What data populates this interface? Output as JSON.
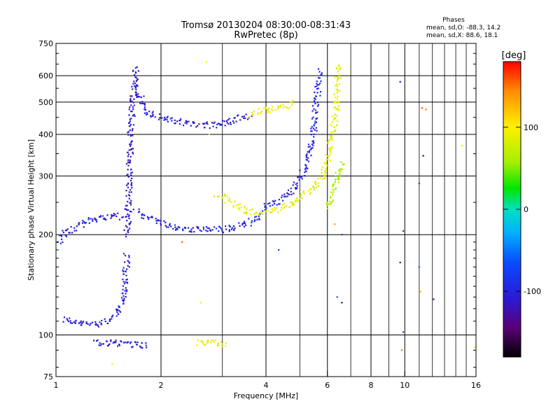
{
  "header": {
    "title_line1": "Tromsø 20130204 08:30:00-08:31:43",
    "title_line2": "RwPretec (8p)",
    "stats_title": "Phases",
    "stats_o": "mean, sd,O: -88.3, 14.2",
    "stats_x": "mean, sd,X: 88.6, 18.1"
  },
  "colorbar": {
    "label": "[deg]",
    "ticks": [
      {
        "value": 100,
        "label": "100"
      },
      {
        "value": 0,
        "label": "0"
      },
      {
        "value": -100,
        "label": "-100"
      }
    ],
    "range": [
      -180,
      180
    ]
  },
  "chart_data": {
    "type": "scatter",
    "title": "Tromsø 20130204 08:30:00-08:31:43",
    "subtitle": "RwPretec (8p)",
    "xlabel": "Frequency [MHz]",
    "ylabel": "Stationary phase Virtual Height [km]",
    "x_scale": "log",
    "y_scale": "log",
    "xlim": [
      1,
      16
    ],
    "ylim": [
      75,
      750
    ],
    "grid": true,
    "x_ticks": [
      1,
      2,
      4,
      6,
      8,
      10,
      16
    ],
    "x_minor_ticks": [
      3,
      5,
      7,
      9,
      11,
      12,
      13,
      14,
      15
    ],
    "y_ticks": [
      75,
      100,
      200,
      300,
      400,
      500,
      600,
      750
    ],
    "color_variable": "phase [deg]",
    "series": [
      {
        "trace": [
          [
            1.05,
            112
          ],
          [
            1.15,
            108
          ],
          [
            1.3,
            108
          ],
          [
            1.4,
            110
          ],
          [
            1.5,
            115
          ],
          [
            1.55,
            125
          ],
          [
            1.58,
            150
          ],
          [
            1.6,
            175
          ]
        ],
        "phase": -105
      },
      {
        "trace": [
          [
            1.02,
            190
          ],
          [
            1.05,
            200
          ],
          [
            1.15,
            210
          ],
          [
            1.25,
            222
          ],
          [
            1.35,
            225
          ],
          [
            1.45,
            228
          ],
          [
            1.55,
            225
          ]
        ],
        "phase": -105
      },
      {
        "trace": [
          [
            1.6,
            200
          ],
          [
            1.62,
            280
          ],
          [
            1.64,
            400
          ],
          [
            1.66,
            500
          ],
          [
            1.68,
            580
          ],
          [
            1.7,
            640
          ]
        ],
        "phase": -110
      },
      {
        "trace": [
          [
            1.7,
            235
          ],
          [
            1.9,
            222
          ],
          [
            2.2,
            210
          ],
          [
            2.6,
            207
          ],
          [
            3.0,
            207
          ],
          [
            3.3,
            210
          ],
          [
            3.6,
            218
          ],
          [
            3.9,
            230
          ]
        ],
        "phase": -100
      },
      {
        "trace": [
          [
            1.7,
            560
          ],
          [
            1.8,
            470
          ],
          [
            2.0,
            450
          ],
          [
            2.4,
            430
          ],
          [
            2.8,
            425
          ],
          [
            3.2,
            440
          ],
          [
            3.6,
            455
          ]
        ],
        "phase": -105
      },
      {
        "trace": [
          [
            3.6,
            460
          ],
          [
            3.9,
            470
          ],
          [
            4.4,
            480
          ],
          [
            4.8,
            500
          ]
        ],
        "phase": 95
      },
      {
        "trace": [
          [
            3.9,
            240
          ],
          [
            4.2,
            248
          ],
          [
            4.6,
            262
          ],
          [
            5.0,
            290
          ],
          [
            5.3,
            340
          ],
          [
            5.5,
            420
          ],
          [
            5.6,
            520
          ],
          [
            5.7,
            620
          ]
        ],
        "phase": -100
      },
      {
        "trace": [
          [
            2.9,
            265
          ],
          [
            3.2,
            248
          ],
          [
            3.6,
            235
          ],
          [
            4.0,
            233
          ],
          [
            4.4,
            240
          ],
          [
            4.9,
            255
          ],
          [
            5.4,
            275
          ],
          [
            5.8,
            300
          ],
          [
            6.1,
            360
          ],
          [
            6.3,
            450
          ],
          [
            6.4,
            560
          ],
          [
            6.5,
            650
          ]
        ],
        "phase": 88
      },
      {
        "trace": [
          [
            6.0,
            240
          ],
          [
            6.3,
            280
          ],
          [
            6.6,
            330
          ]
        ],
        "phase": 60
      },
      {
        "trace": [
          [
            1.3,
            95
          ],
          [
            1.6,
            94
          ],
          [
            1.85,
            93
          ]
        ],
        "phase": -105
      },
      {
        "trace": [
          [
            2.55,
            95
          ],
          [
            3.1,
            94
          ]
        ],
        "phase": 95
      }
    ],
    "points": [
      {
        "x": 9.7,
        "y": 575,
        "phase": -110
      },
      {
        "x": 11.2,
        "y": 480,
        "phase": 160
      },
      {
        "x": 11.5,
        "y": 475,
        "phase": 150
      },
      {
        "x": 11.3,
        "y": 345,
        "phase": -150
      },
      {
        "x": 14.6,
        "y": 370,
        "phase": 88
      },
      {
        "x": 11.0,
        "y": 285,
        "phase": -80
      },
      {
        "x": 9.9,
        "y": 205,
        "phase": -80
      },
      {
        "x": 9.7,
        "y": 165,
        "phase": -140
      },
      {
        "x": 11.0,
        "y": 160,
        "phase": -60
      },
      {
        "x": 11.1,
        "y": 135,
        "phase": 120
      },
      {
        "x": 12.1,
        "y": 128,
        "phase": -150
      },
      {
        "x": 9.9,
        "y": 102,
        "phase": -80
      },
      {
        "x": 9.8,
        "y": 90,
        "phase": 150
      },
      {
        "x": 6.3,
        "y": 215,
        "phase": 140
      },
      {
        "x": 6.6,
        "y": 200,
        "phase": -80
      },
      {
        "x": 6.4,
        "y": 130,
        "phase": -60
      },
      {
        "x": 6.6,
        "y": 125,
        "phase": -150
      },
      {
        "x": 4.35,
        "y": 180,
        "phase": -80
      },
      {
        "x": 2.6,
        "y": 125,
        "phase": 100
      },
      {
        "x": 2.7,
        "y": 660,
        "phase": 100
      },
      {
        "x": 1.45,
        "y": 82,
        "phase": 100
      },
      {
        "x": 2.75,
        "y": 400,
        "phase": 100
      },
      {
        "x": 2.3,
        "y": 190,
        "phase": 160
      },
      {
        "x": 15.9,
        "y": 92,
        "phase": 100
      }
    ]
  }
}
